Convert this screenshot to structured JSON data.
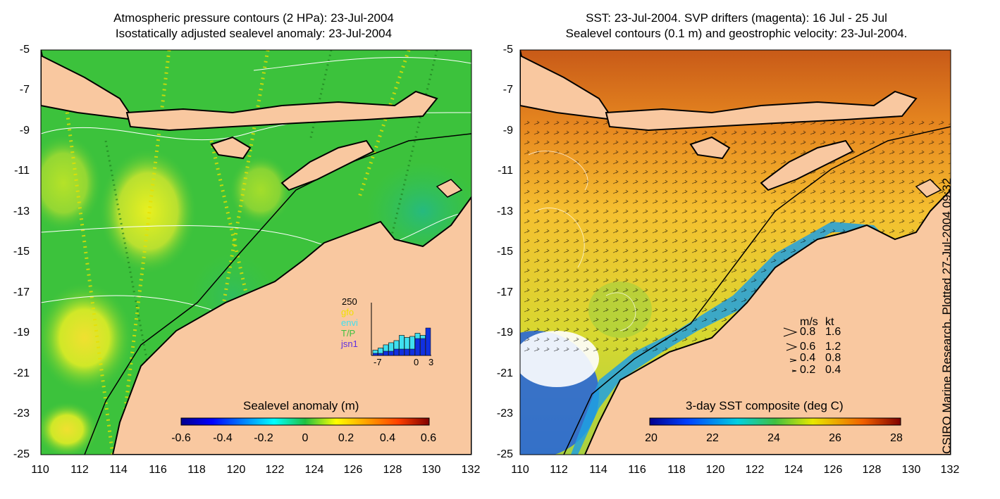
{
  "left_panel": {
    "title_line1": "Atmospheric pressure contours (2 HPa): 23-Jul-2004",
    "title_line2": "Isostatically adjusted sealevel anomaly: 23-Jul-2004",
    "y_ticks": [
      "-5",
      "-7",
      "-9",
      "-11",
      "-13",
      "-15",
      "-17",
      "-19",
      "-21",
      "-23",
      "-25"
    ],
    "x_ticks": [
      "110",
      "112",
      "114",
      "116",
      "118",
      "120",
      "122",
      "124",
      "126",
      "128",
      "130",
      "132"
    ],
    "colorbar_label": "Sealevel anomaly (m)",
    "colorbar_ticks": [
      "-0.6",
      "-0.4",
      "-0.2",
      "0",
      "0.2",
      "0.4",
      "0.6"
    ],
    "inset": {
      "ymax": "250",
      "legend": [
        {
          "label": "gfo",
          "color": "#f0e000"
        },
        {
          "label": "envi",
          "color": "#40e0f0"
        },
        {
          "label": "T/P",
          "color": "#40c040"
        },
        {
          "label": "jsn1",
          "color": "#6030e0"
        }
      ],
      "x_ticks": [
        "-7",
        "0",
        "3"
      ],
      "bars": [
        0.1,
        0.14,
        0.2,
        0.24,
        0.28,
        0.38,
        0.34,
        0.36,
        0.42,
        0.38,
        0.52
      ],
      "bars_light": [
        0.06,
        0.1,
        0.12,
        0.16,
        0.16,
        0.26,
        0.22,
        0.24,
        0.1,
        0.06,
        0.0
      ]
    }
  },
  "right_panel": {
    "title_line1": "SST: 23-Jul-2004. SVP drifters (magenta): 16 Jul - 25 Jul",
    "title_line2": "Sealevel contours (0.1 m) and geostrophic velocity: 23-Jul-2004.",
    "y_ticks": [
      "-5",
      "-7",
      "-9",
      "-11",
      "-13",
      "-15",
      "-17",
      "-19",
      "-21",
      "-23",
      "-25"
    ],
    "x_ticks": [
      "110",
      "112",
      "114",
      "116",
      "118",
      "120",
      "122",
      "124",
      "126",
      "128",
      "130",
      "132"
    ],
    "colorbar_label": "3-day SST composite (deg C)",
    "colorbar_ticks": [
      "20",
      "22",
      "24",
      "26",
      "28"
    ],
    "velocity_legend": {
      "header_ms": "m/s",
      "header_kt": "kt",
      "rows": [
        {
          "ms": "0.8",
          "kt": "1.6"
        },
        {
          "ms": "0.6",
          "kt": "1.2"
        },
        {
          "ms": "0.4",
          "kt": "0.8"
        },
        {
          "ms": "0.2",
          "kt": "0.4"
        }
      ]
    }
  },
  "credit": "CSIRO Marine Research. Plotted 27-Jul-2004 09:32",
  "colors": {
    "land": "#f9c8a0",
    "sla_base": "#3cc23c",
    "sst_base": "#f0c020"
  }
}
